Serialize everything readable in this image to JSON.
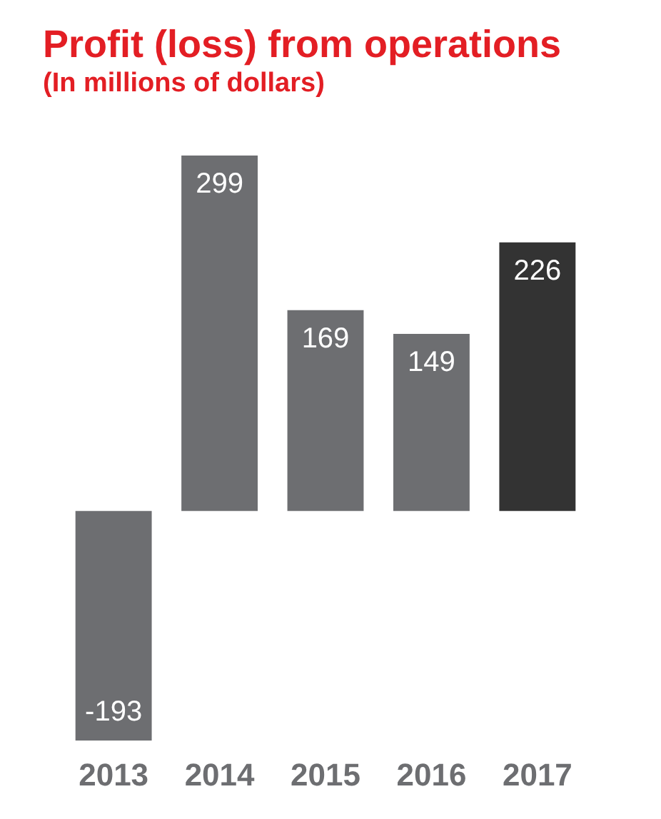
{
  "chart_data": {
    "type": "bar",
    "title": "Profit (loss) from operations",
    "subtitle": "(In millions of dollars)",
    "categories": [
      "2013",
      "2014",
      "2015",
      "2016",
      "2017"
    ],
    "values": [
      -193,
      299,
      169,
      149,
      226
    ],
    "colors": [
      "#6d6e71",
      "#6d6e71",
      "#6d6e71",
      "#6d6e71",
      "#333333"
    ],
    "data_labels": true
  }
}
